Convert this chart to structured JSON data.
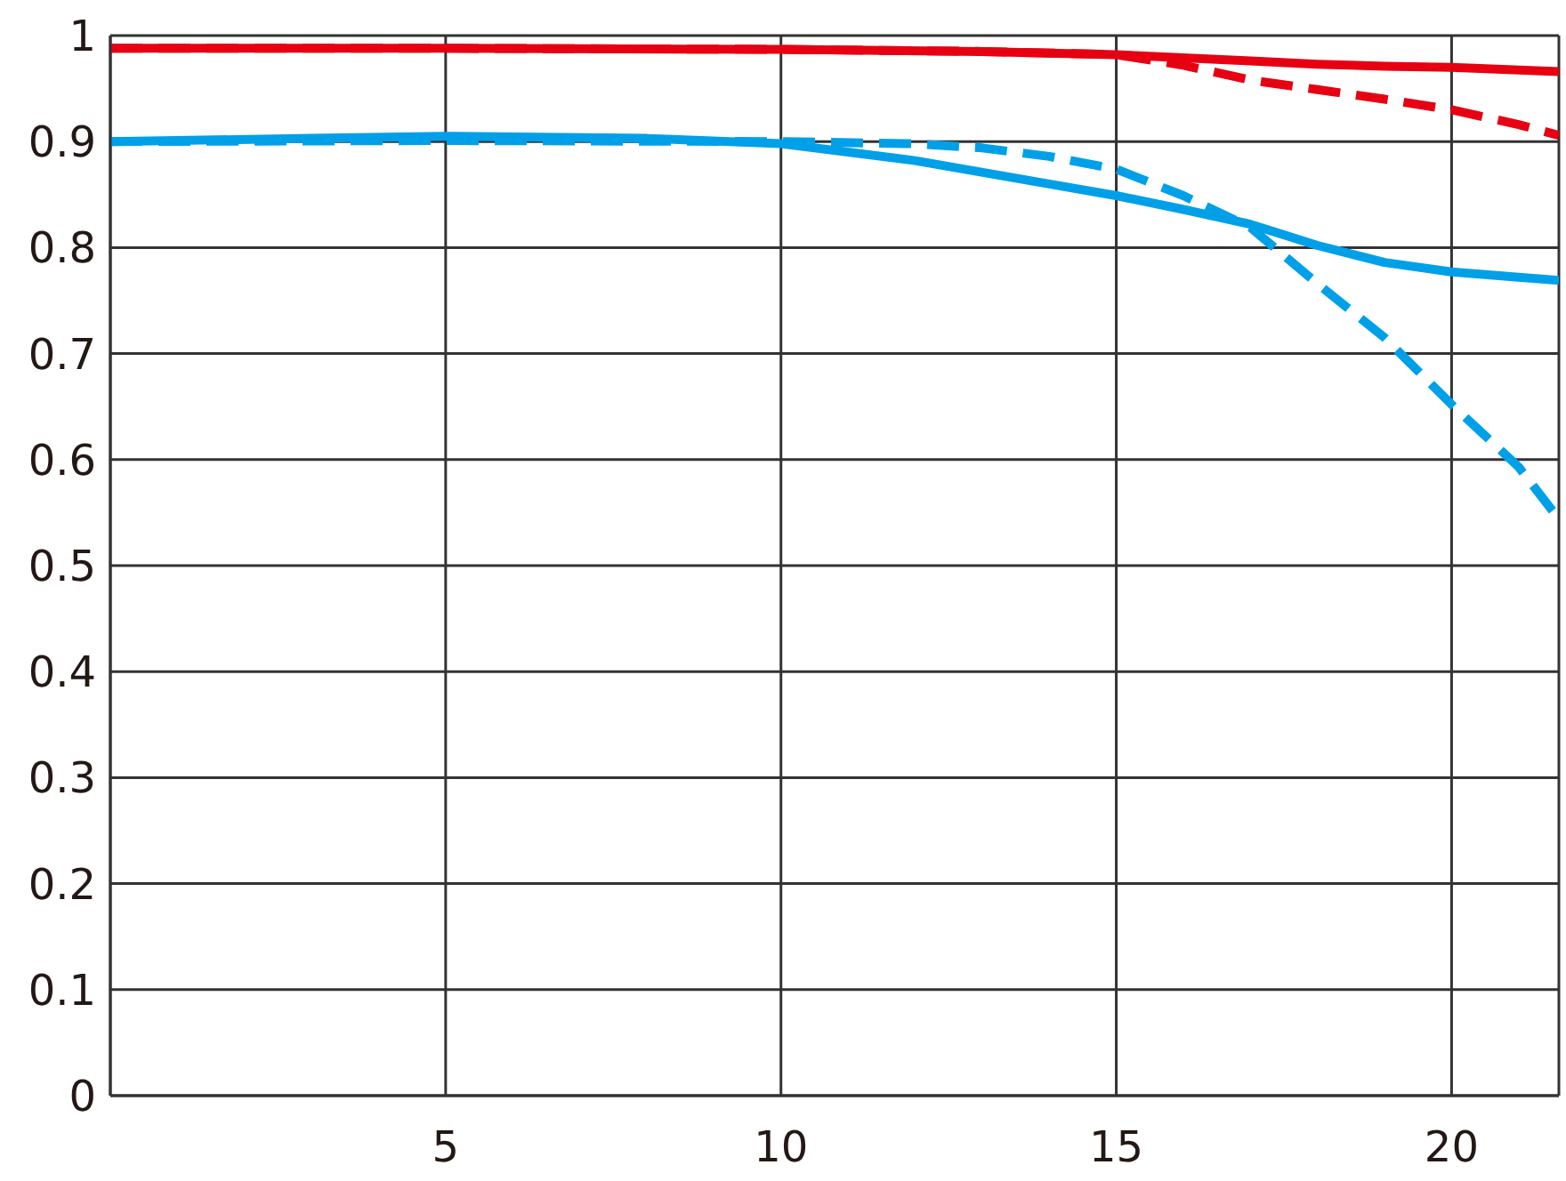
{
  "chart_data": {
    "type": "line",
    "xlim": [
      0,
      21.6
    ],
    "xticks": [
      5,
      10,
      15,
      20
    ],
    "ylim": [
      0,
      1
    ],
    "yticks": [
      0,
      0.1,
      0.2,
      0.3,
      0.4,
      0.5,
      0.6,
      0.7,
      0.8,
      0.9,
      1
    ],
    "grid": true,
    "marker": "none",
    "series": [
      {
        "color": "#e60012",
        "line_style": "solid",
        "x": [
          0,
          5,
          10,
          13,
          15,
          17,
          18,
          19,
          20,
          21.6
        ],
        "values": [
          0.988,
          0.988,
          0.987,
          0.985,
          0.982,
          0.976,
          0.973,
          0.971,
          0.97,
          0.966
        ]
      },
      {
        "color": "#e60012",
        "line_style": "dashed",
        "x": [
          0,
          5,
          10,
          13,
          15,
          16,
          17,
          18,
          19,
          20,
          21,
          21.6
        ],
        "values": [
          0.988,
          0.988,
          0.987,
          0.985,
          0.982,
          0.972,
          0.958,
          0.949,
          0.94,
          0.93,
          0.916,
          0.906
        ]
      },
      {
        "color": "#00a0e9",
        "line_style": "solid",
        "x": [
          0,
          3,
          5,
          8,
          10,
          12,
          14,
          15,
          16,
          17,
          18,
          19,
          20,
          21,
          21.6
        ],
        "values": [
          0.9,
          0.903,
          0.905,
          0.903,
          0.898,
          0.882,
          0.86,
          0.849,
          0.836,
          0.822,
          0.802,
          0.786,
          0.777,
          0.772,
          0.769
        ]
      },
      {
        "color": "#00a0e9",
        "line_style": "dashed",
        "x": [
          0,
          5,
          10,
          12,
          13,
          14,
          15,
          16,
          17,
          18,
          19,
          20,
          21,
          21.6
        ],
        "values": [
          0.9,
          0.901,
          0.9,
          0.898,
          0.894,
          0.886,
          0.874,
          0.849,
          0.819,
          0.766,
          0.715,
          0.652,
          0.593,
          0.544
        ]
      }
    ]
  }
}
